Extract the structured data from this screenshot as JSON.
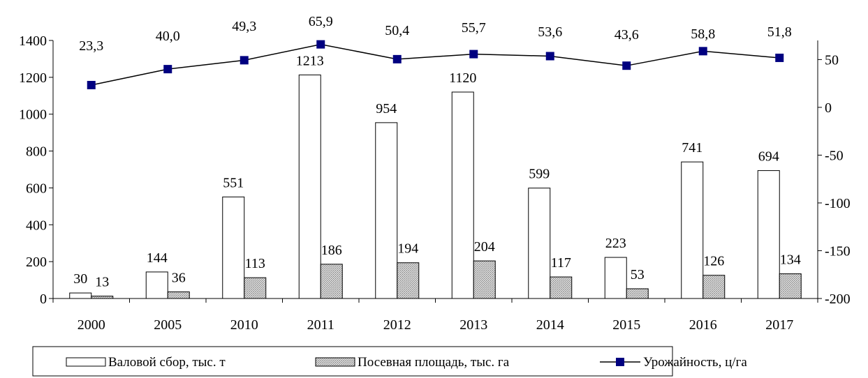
{
  "chart_data": {
    "type": "bar",
    "categories": [
      "2000",
      "2005",
      "2010",
      "2011",
      "2012",
      "2013",
      "2014",
      "2015",
      "2016",
      "2017"
    ],
    "series": [
      {
        "name": "Валовой сбор, тыс. т",
        "type": "bar",
        "axis": "left",
        "values": [
          30,
          144,
          551,
          1213,
          954,
          1120,
          599,
          223,
          741,
          694
        ],
        "labels": [
          "30",
          "144",
          "551",
          "1213",
          "954",
          "1120",
          "599",
          "223",
          "741",
          "694"
        ],
        "color": "#ffffff"
      },
      {
        "name": "Посевная площадь, тыс. га",
        "type": "bar",
        "axis": "left",
        "values": [
          13,
          36,
          113,
          186,
          194,
          204,
          117,
          53,
          126,
          134
        ],
        "labels": [
          "13",
          "36",
          "113",
          "186",
          "194",
          "204",
          "117",
          "53",
          "126",
          "134"
        ],
        "color": "#c8c8c8"
      },
      {
        "name": "Урожайность, ц/га",
        "type": "line",
        "axis": "right",
        "values": [
          23.3,
          40.0,
          49.3,
          65.9,
          50.4,
          55.7,
          53.6,
          43.6,
          58.8,
          51.8
        ],
        "labels": [
          "23,3",
          "40,0",
          "49,3",
          "65,9",
          "50,4",
          "55,7",
          "53,6",
          "43,6",
          "58,8",
          "51,8"
        ],
        "color": "#000080"
      }
    ],
    "y_left": {
      "min": 0,
      "max": 1400,
      "ticks": [
        0,
        200,
        400,
        600,
        800,
        1000,
        1200,
        1400
      ],
      "tick_labels": [
        "0",
        "200",
        "400",
        "600",
        "800",
        "1000",
        "1200",
        "1400"
      ]
    },
    "y_right": {
      "min": -200,
      "max": 70,
      "ticks": [
        -200,
        -150,
        -100,
        -50,
        0,
        50
      ],
      "tick_labels": [
        "-200",
        "-150",
        "-100",
        "-50",
        "0",
        "50"
      ]
    },
    "grid": false,
    "legend": "bottom"
  }
}
